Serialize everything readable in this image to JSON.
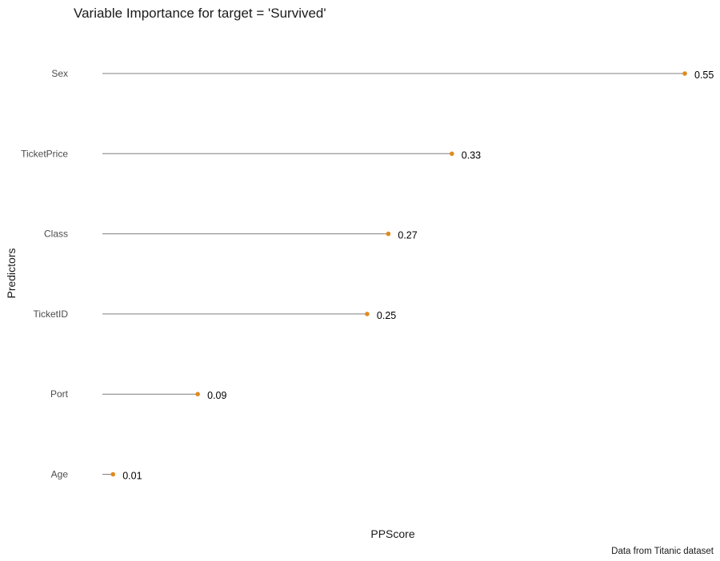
{
  "chart_data": {
    "type": "lollipop",
    "title": "Variable Importance for target = 'Survived'",
    "xlabel": "PPScore",
    "ylabel": "Predictors",
    "caption": "Data from Titanic dataset",
    "categories": [
      "Sex",
      "TicketPrice",
      "Class",
      "TicketID",
      "Port",
      "Age"
    ],
    "values": [
      0.55,
      0.33,
      0.27,
      0.25,
      0.09,
      0.01
    ],
    "value_labels": [
      "0.55",
      "0.33",
      "0.27",
      "0.25",
      "0.09",
      "0.01"
    ],
    "xlim": [
      0,
      0.55
    ],
    "grid": false,
    "legend": "none",
    "colors": {
      "point": "#E08A1E",
      "stem": "#7f7f7f",
      "text": "#1a1a1a"
    }
  }
}
